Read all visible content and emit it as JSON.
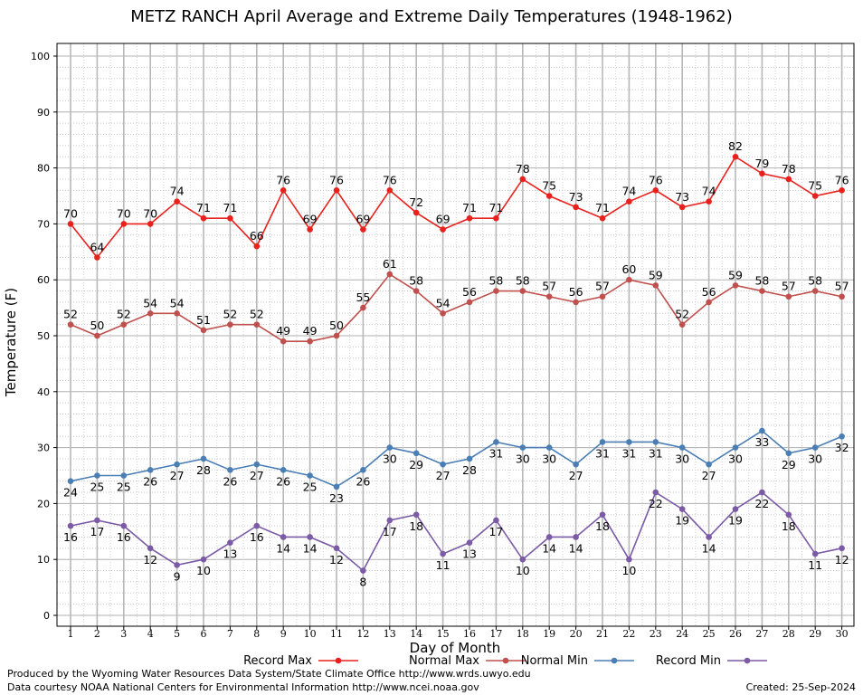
{
  "chart_data": {
    "type": "line",
    "title": "METZ RANCH April Average and Extreme Daily Temperatures (1948-1962)",
    "xlabel": "Day of Month",
    "ylabel": "Temperature (F)",
    "ylim": [
      0,
      100
    ],
    "yticks": [
      0,
      10,
      20,
      30,
      40,
      50,
      60,
      70,
      80,
      90,
      100
    ],
    "x": [
      1,
      2,
      3,
      4,
      5,
      6,
      7,
      8,
      9,
      10,
      11,
      12,
      13,
      14,
      15,
      16,
      17,
      18,
      19,
      20,
      21,
      22,
      23,
      24,
      25,
      26,
      27,
      28,
      29,
      30
    ],
    "grid": true,
    "legend_position": "bottom",
    "series": [
      {
        "name": "Record Max",
        "color": "#e8211d",
        "values": [
          70,
          64,
          70,
          70,
          74,
          71,
          71,
          66,
          76,
          69,
          76,
          69,
          76,
          72,
          69,
          71,
          71,
          78,
          75,
          73,
          71,
          74,
          76,
          73,
          74,
          82,
          79,
          78,
          75,
          76
        ]
      },
      {
        "name": "Normal Max",
        "color": "#c0504d",
        "values": [
          52,
          50,
          52,
          54,
          54,
          51,
          52,
          52,
          49,
          49,
          50,
          55,
          61,
          58,
          54,
          56,
          58,
          58,
          57,
          56,
          57,
          60,
          59,
          52,
          56,
          59,
          58,
          57,
          58,
          57
        ]
      },
      {
        "name": "Normal Min",
        "color": "#4a7eb5",
        "values": [
          24,
          25,
          25,
          26,
          27,
          28,
          26,
          27,
          26,
          25,
          23,
          26,
          30,
          29,
          27,
          28,
          31,
          30,
          30,
          27,
          31,
          31,
          31,
          30,
          27,
          30,
          33,
          29,
          30,
          32
        ]
      },
      {
        "name": "Record Min",
        "color": "#7b5aa6",
        "values": [
          16,
          17,
          16,
          12,
          9,
          10,
          13,
          16,
          14,
          14,
          12,
          8,
          17,
          18,
          11,
          13,
          17,
          10,
          14,
          14,
          18,
          10,
          22,
          19,
          14,
          19,
          22,
          18,
          11,
          12
        ]
      }
    ]
  },
  "footer": {
    "produced_by": "Produced by the Wyoming Water Resources Data System/State Climate Office http://www.wrds.uwyo.edu",
    "courtesy": "Data courtesy NOAA National Centers for Environmental Information http://www.ncei.noaa.gov",
    "created": "Created:  25-Sep-2024"
  }
}
